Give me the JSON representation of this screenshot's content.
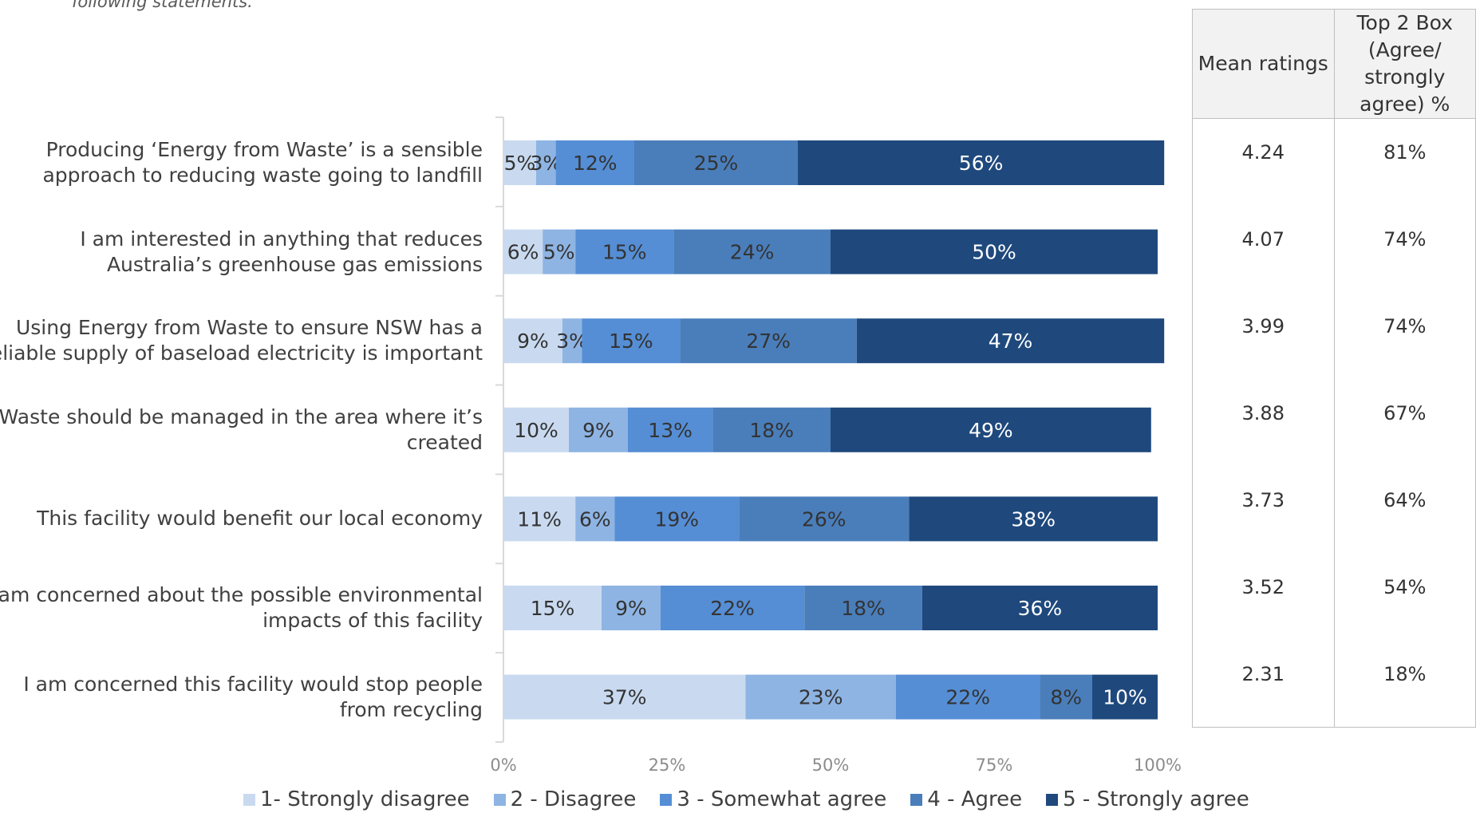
{
  "note": "following statements.",
  "table": {
    "col1_header": "Mean ratings",
    "col2_header": "Top 2 Box (Agree/ strongly agree) %",
    "rows": [
      {
        "mean": "4.24",
        "top2": "81%"
      },
      {
        "mean": "4.07",
        "top2": "74%"
      },
      {
        "mean": "3.99",
        "top2": "74%"
      },
      {
        "mean": "3.88",
        "top2": "67%"
      },
      {
        "mean": "3.73",
        "top2": "64%"
      },
      {
        "mean": "3.52",
        "top2": "54%"
      },
      {
        "mean": "2.31",
        "top2": "18%"
      }
    ]
  },
  "chart_data": {
    "type": "bar",
    "orientation": "horizontal",
    "stacked": true,
    "categories": [
      "Producing ‘Energy from Waste’ is a sensible approach to reducing waste going to landfill",
      "I am interested in anything that reduces Australia’s greenhouse gas emissions",
      "Using Energy from Waste to ensure NSW has a reliable supply of baseload electricity is important",
      "Waste should be managed in the area where it’s created",
      "This facility would benefit our local economy",
      "I am concerned about the possible environmental impacts of this facility",
      "I am concerned this facility would stop people from recycling"
    ],
    "series": [
      {
        "name": "1- Strongly disagree",
        "color": "#c9daf0",
        "values": [
          5,
          6,
          9,
          10,
          11,
          15,
          37
        ]
      },
      {
        "name": "2 - Disagree",
        "color": "#8eb4e3",
        "values": [
          3,
          5,
          3,
          9,
          6,
          9,
          23
        ]
      },
      {
        "name": "3 - Somewhat agree",
        "color": "#558ed5",
        "values": [
          12,
          15,
          15,
          13,
          19,
          22,
          22
        ]
      },
      {
        "name": "4 - Agree",
        "color": "#4a7ebb",
        "values": [
          25,
          24,
          27,
          18,
          26,
          18,
          8
        ]
      },
      {
        "name": "5 - Strongly agree",
        "color": "#1f497d",
        "values": [
          56,
          50,
          47,
          49,
          38,
          36,
          10
        ]
      }
    ],
    "xlim": [
      0,
      100
    ],
    "x_ticks": [
      "0%",
      "25%",
      "50%",
      "75%",
      "100%"
    ],
    "legend_position": "bottom"
  }
}
